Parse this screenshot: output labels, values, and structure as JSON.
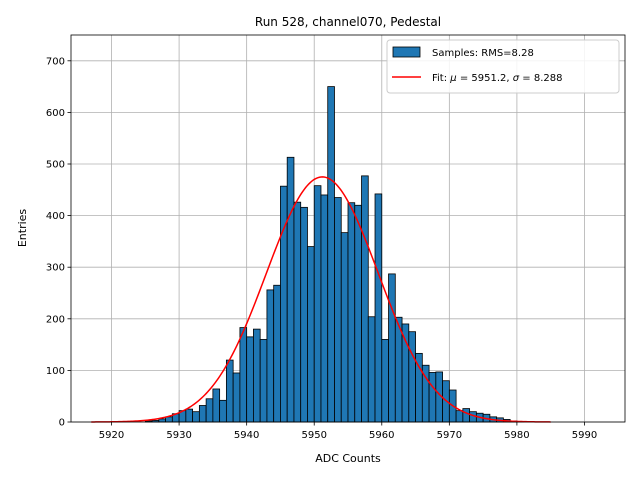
{
  "chart_data": {
    "type": "bar",
    "title": "Run 528, channel070, Pedestal",
    "xlabel": "ADC Counts",
    "ylabel": "Entries",
    "xlim": [
      5914,
      5996
    ],
    "ylim": [
      0,
      750
    ],
    "xticks": [
      5920,
      5930,
      5940,
      5950,
      5960,
      5970,
      5980,
      5990
    ],
    "yticks": [
      0,
      100,
      200,
      300,
      400,
      500,
      600,
      700
    ],
    "grid": true,
    "legend_position": "top-right",
    "bar_color": "#1f77b4",
    "fit_color": "#ff0000",
    "histogram": {
      "name": "Samples: RMS=8.28",
      "bin_width": 1,
      "bin_starts": [
        5925,
        5926,
        5927,
        5928,
        5929,
        5930,
        5931,
        5932,
        5933,
        5934,
        5935,
        5936,
        5937,
        5938,
        5939,
        5940,
        5941,
        5942,
        5943,
        5944,
        5945,
        5946,
        5947,
        5948,
        5949,
        5950,
        5951,
        5952,
        5953,
        5954,
        5955,
        5956,
        5957,
        5958,
        5959,
        5960,
        5961,
        5962,
        5963,
        5964,
        5965,
        5966,
        5967,
        5968,
        5969,
        5970,
        5971,
        5972,
        5973,
        5974,
        5975,
        5976,
        5977,
        5978,
        5979,
        5980
      ],
      "counts": [
        2,
        3,
        6,
        10,
        16,
        22,
        25,
        20,
        32,
        45,
        64,
        42,
        120,
        95,
        183,
        165,
        180,
        160,
        256,
        265,
        457,
        513,
        426,
        416,
        340,
        458,
        440,
        650,
        435,
        367,
        425,
        420,
        477,
        204,
        442,
        160,
        287,
        203,
        190,
        175,
        133,
        110,
        96,
        97,
        80,
        62,
        22,
        26,
        20,
        17,
        15,
        10,
        8,
        5,
        2,
        1
      ]
    },
    "fit": {
      "name": "Fit: $\\mu$ = 5951.2, $\\sigma$ = 8.288",
      "mu": 5951.2,
      "sigma": 8.288,
      "amplitude": 475,
      "x_range": [
        5917,
        5985
      ]
    }
  },
  "legend": {
    "samples_label": "Samples: RMS=8.28",
    "fit_prefix": "Fit: ",
    "mu_symbol": "μ",
    "mu_text": " = 5951.2, ",
    "sigma_symbol": "σ",
    "sigma_text": " = 8.288"
  }
}
